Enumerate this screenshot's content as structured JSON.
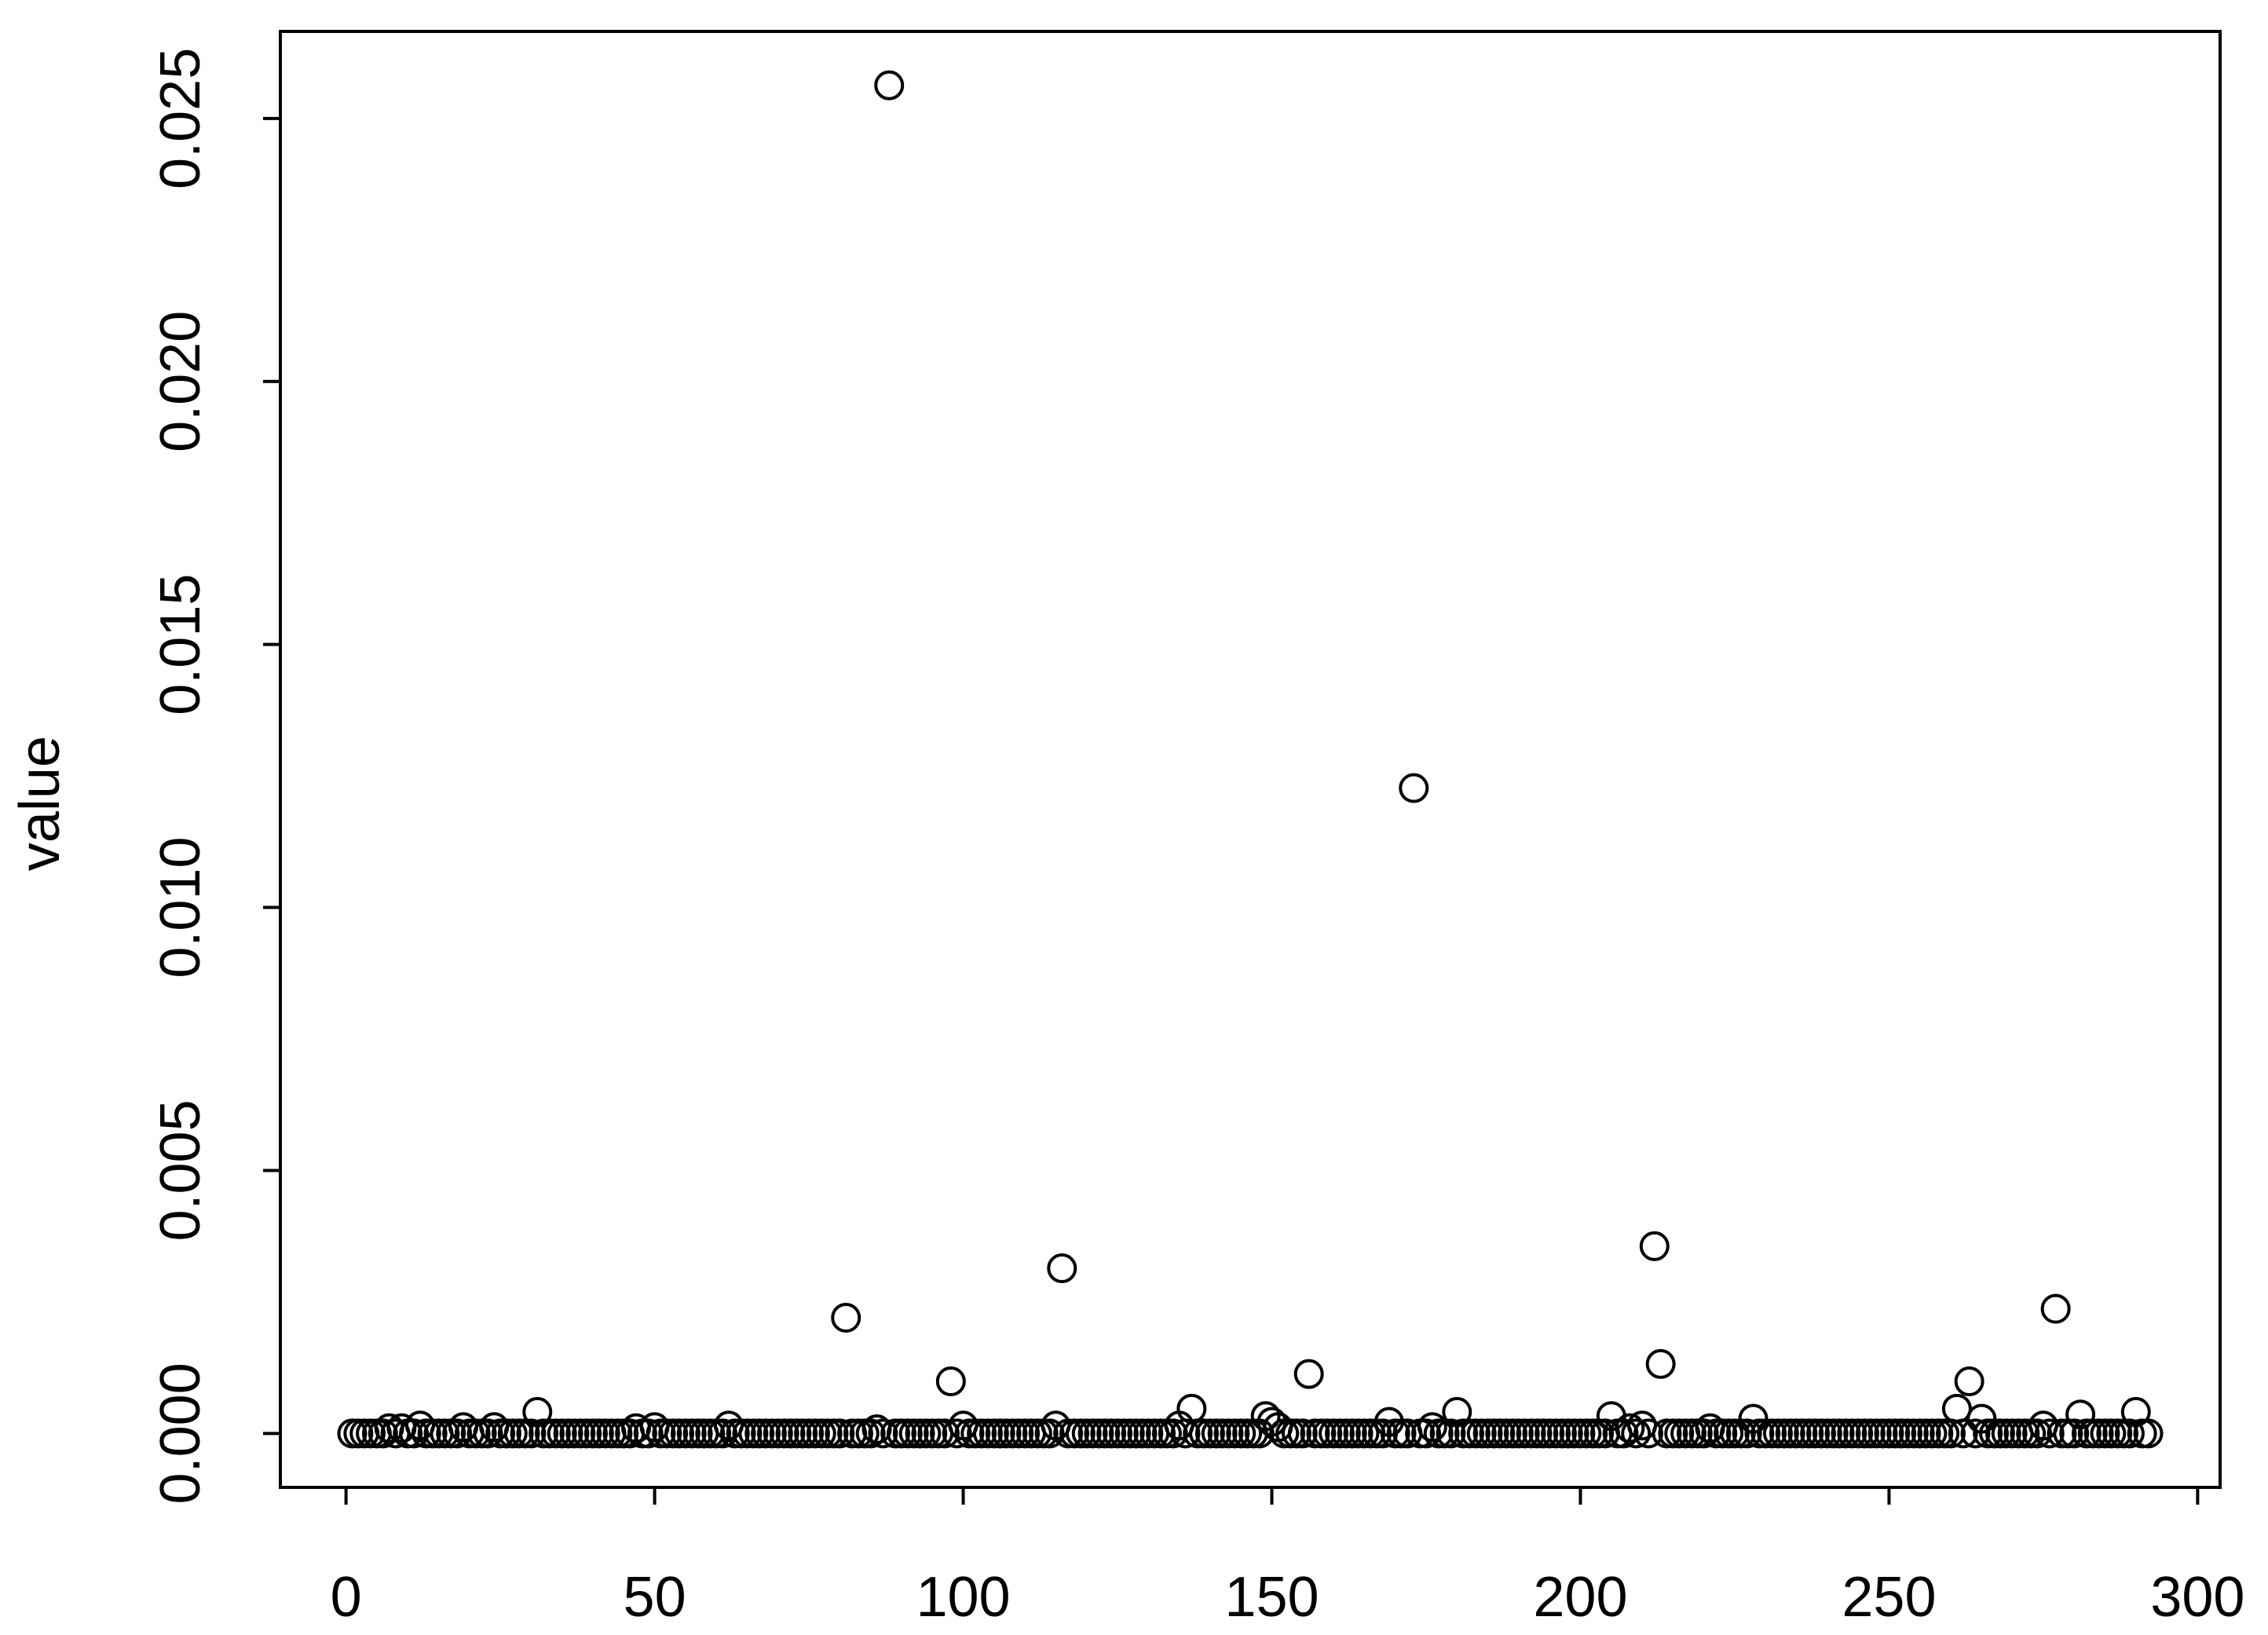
{
  "chart_data": {
    "type": "scatter",
    "y_label": "value",
    "x": [
      1,
      2,
      3,
      4,
      5,
      6,
      7,
      8,
      9,
      10,
      11,
      12,
      13,
      14,
      15,
      16,
      17,
      18,
      19,
      20,
      21,
      22,
      23,
      24,
      25,
      26,
      27,
      28,
      29,
      30,
      31,
      32,
      33,
      34,
      35,
      36,
      37,
      38,
      39,
      40,
      41,
      42,
      43,
      44,
      45,
      46,
      47,
      48,
      49,
      50,
      51,
      52,
      53,
      54,
      55,
      56,
      57,
      58,
      59,
      60,
      61,
      62,
      63,
      64,
      65,
      66,
      67,
      68,
      69,
      70,
      71,
      72,
      73,
      74,
      75,
      76,
      77,
      78,
      79,
      80,
      81,
      82,
      83,
      84,
      85,
      86,
      87,
      88,
      89,
      90,
      91,
      92,
      93,
      94,
      95,
      96,
      97,
      98,
      99,
      100,
      101,
      102,
      103,
      104,
      105,
      106,
      107,
      108,
      109,
      110,
      111,
      112,
      113,
      114,
      115,
      116,
      117,
      118,
      119,
      120,
      121,
      122,
      123,
      124,
      125,
      126,
      127,
      128,
      129,
      130,
      131,
      132,
      133,
      134,
      135,
      136,
      137,
      138,
      139,
      140,
      141,
      142,
      143,
      144,
      145,
      146,
      147,
      148,
      149,
      150,
      151,
      152,
      153,
      154,
      155,
      156,
      157,
      158,
      159,
      160,
      161,
      162,
      163,
      164,
      165,
      166,
      167,
      168,
      169,
      170,
      171,
      172,
      173,
      174,
      175,
      176,
      177,
      178,
      179,
      180,
      181,
      182,
      183,
      184,
      185,
      186,
      187,
      188,
      189,
      190,
      191,
      192,
      193,
      194,
      195,
      196,
      197,
      198,
      199,
      200,
      201,
      202,
      203,
      204,
      205,
      206,
      207,
      208,
      209,
      210,
      211,
      212,
      213,
      214,
      215,
      216,
      217,
      218,
      219,
      220,
      221,
      222,
      223,
      224,
      225,
      226,
      227,
      228,
      229,
      230,
      231,
      232,
      233,
      234,
      235,
      236,
      237,
      238,
      239,
      240,
      241,
      242,
      243,
      244,
      245,
      246,
      247,
      248,
      249,
      250,
      251,
      252,
      253,
      254,
      255,
      256,
      257,
      258,
      259,
      260,
      261,
      262,
      263,
      264,
      265,
      266,
      267,
      268,
      269,
      270,
      271,
      272,
      273,
      274,
      275,
      276,
      277,
      278,
      279,
      280,
      281,
      282,
      283,
      284,
      285,
      286,
      287,
      288,
      289,
      290,
      291,
      292
    ],
    "values": [
      0,
      0,
      0,
      0,
      0,
      0,
      0.0001,
      0,
      0.0001,
      0,
      0,
      0.00015,
      0,
      0,
      0,
      0,
      0,
      0,
      0.00012,
      0,
      0,
      0,
      0,
      0.00012,
      0,
      0,
      0,
      0,
      0,
      0,
      0.00041,
      0,
      0,
      0,
      0,
      0,
      0,
      0,
      0,
      0,
      0,
      0,
      0,
      0,
      0,
      0,
      0.0001,
      0,
      0,
      0.00012,
      0,
      0,
      0,
      0,
      0,
      0,
      0,
      0,
      0,
      0,
      0,
      0.00015,
      0,
      0,
      0,
      0,
      0,
      0,
      0,
      0,
      0,
      0,
      0,
      0,
      0,
      0,
      0,
      0,
      0,
      0,
      0.0022,
      0,
      0,
      0,
      0,
      8e-05,
      0,
      0.02563,
      0,
      0,
      0,
      0,
      0,
      0,
      0,
      0,
      0,
      0.00099,
      0,
      0.00015,
      0,
      0,
      0,
      0,
      0,
      0,
      0,
      0,
      0,
      0,
      0,
      0,
      0,
      0,
      0.00015,
      0.00314,
      0,
      0,
      0,
      0,
      0,
      0,
      0,
      0,
      0,
      0,
      0,
      0,
      0,
      0,
      0,
      0,
      0,
      0,
      0.00015,
      0,
      0.00047,
      0,
      0,
      0,
      0,
      0,
      0,
      0,
      0,
      0,
      0,
      0,
      0.00033,
      0.00022,
      0.00012,
      0,
      0,
      0,
      0,
      0.00113,
      0,
      0,
      0,
      0,
      0,
      0,
      0,
      0,
      0,
      0,
      0,
      0,
      0.00022,
      0,
      0,
      0,
      0.01227,
      0,
      0,
      0.00012,
      0,
      0,
      0,
      0.00041,
      0,
      0,
      0,
      0,
      0,
      0,
      0,
      0,
      0,
      0,
      0,
      0,
      0,
      0,
      0,
      0,
      0,
      0,
      0,
      0,
      0,
      0,
      0,
      0,
      0.00033,
      0,
      0,
      0.0001,
      0,
      0.00015,
      0,
      0.00356,
      0.00132,
      0,
      0,
      0,
      0,
      0,
      0,
      0,
      0.0001,
      0,
      0,
      0,
      0,
      0,
      0,
      0.00028,
      0,
      0,
      0,
      0,
      0,
      0,
      0,
      0,
      0,
      0,
      0,
      0,
      0,
      0,
      0,
      0,
      0,
      0,
      0,
      0,
      0,
      0,
      0,
      0,
      0,
      0,
      0,
      0,
      0,
      0,
      0,
      0,
      0.00047,
      0,
      0.00099,
      0,
      0.00028,
      0,
      0,
      0,
      0,
      0,
      0,
      0,
      0,
      0,
      0.00015,
      0,
      0.00237,
      0,
      0,
      0,
      0.00036,
      0,
      0,
      0,
      0,
      0,
      0,
      0,
      0,
      0.00041,
      0,
      0
    ],
    "color": "#000000",
    "xlim": [
      -10.64,
      303.64
    ],
    "xticks": [
      0,
      50,
      100,
      150,
      200,
      250,
      300
    ],
    "ylim": [
      -0.001025,
      0.026655
    ],
    "yticks": [
      {
        "value": 0,
        "label": "0.000"
      },
      {
        "value": 0.005,
        "label": "0.005"
      },
      {
        "value": 0.01,
        "label": "0.010"
      },
      {
        "value": 0.015,
        "label": "0.015"
      },
      {
        "value": 0.02,
        "label": "0.020"
      },
      {
        "value": 0.025,
        "label": "0.025"
      }
    ]
  }
}
